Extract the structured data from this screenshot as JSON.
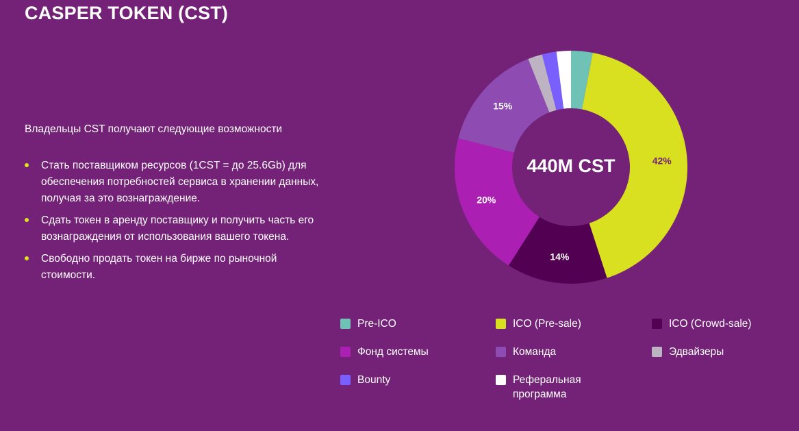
{
  "header": {
    "title": "CASPER TOKEN (CST)"
  },
  "intro": "Владельцы CST получают следующие возможности",
  "benefits": [
    "Стать поставщиком ресурсов (1CST = до 25.6Gb) для обеспечения потребностей сервиса в хранении данных, получая за это вознаграждение.",
    "Сдать токен в аренду поставщику и получить часть его вознаграждения от использования вашего токена.",
    "Свободно продать токен на бирже по рыночной стоимости."
  ],
  "bullet_color": "#dbe020",
  "chart_data": {
    "type": "pie",
    "donut": true,
    "center_label": "440M CST",
    "start_angle_deg": 0,
    "slices": [
      {
        "name": "Pre-ICO",
        "value": 3,
        "color": "#6fc2b6",
        "label": ""
      },
      {
        "name": "ICO (Pre-sale)",
        "value": 42,
        "color": "#d9e01f",
        "label": "42%",
        "label_color": "#742277"
      },
      {
        "name": "ICO (Crowd-sale)",
        "value": 14,
        "color": "#510052",
        "label": "14%",
        "label_color": "#ffffff"
      },
      {
        "name": "Фонд системы",
        "value": 20,
        "color": "#ab1fb3",
        "label": "20%",
        "label_color": "#ffffff"
      },
      {
        "name": "Команда",
        "value": 15,
        "color": "#8e4cb3",
        "label": "15%",
        "label_color": "#ffffff"
      },
      {
        "name": "Эдвайзеры",
        "value": 2,
        "color": "#bdb3c2",
        "label": ""
      },
      {
        "name": "Bounty",
        "value": 2,
        "color": "#7a5fff",
        "label": ""
      },
      {
        "name": "Реферальная программа",
        "value": 2,
        "color": "#ffffff",
        "label": ""
      }
    ],
    "legend_placement": "bottom"
  },
  "legend": [
    {
      "label": "Pre-ICO",
      "color": "#6fc2b6"
    },
    {
      "label": "ICO (Pre-sale)",
      "color": "#d9e01f"
    },
    {
      "label": "ICO (Crowd-sale)",
      "color": "#510052"
    },
    {
      "label": "Фонд системы",
      "color": "#ab1fb3"
    },
    {
      "label": "Команда",
      "color": "#8e4cb3"
    },
    {
      "label": "Эдвайзеры",
      "color": "#bdb3c2"
    },
    {
      "label": "Bounty",
      "color": "#7a5fff"
    },
    {
      "label": "Реферальная программа",
      "color": "#ffffff"
    }
  ]
}
